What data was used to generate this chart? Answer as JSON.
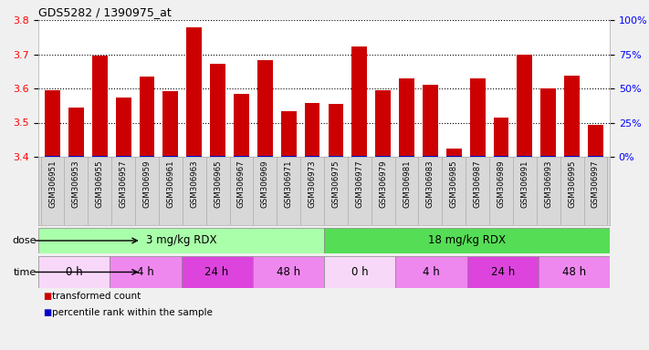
{
  "title": "GDS5282 / 1390975_at",
  "samples": [
    "GSM306951",
    "GSM306953",
    "GSM306955",
    "GSM306957",
    "GSM306959",
    "GSM306961",
    "GSM306963",
    "GSM306965",
    "GSM306967",
    "GSM306969",
    "GSM306971",
    "GSM306973",
    "GSM306975",
    "GSM306977",
    "GSM306979",
    "GSM306981",
    "GSM306983",
    "GSM306985",
    "GSM306987",
    "GSM306989",
    "GSM306991",
    "GSM306993",
    "GSM306995",
    "GSM306997"
  ],
  "values": [
    3.594,
    3.543,
    3.697,
    3.573,
    3.634,
    3.592,
    3.779,
    3.671,
    3.583,
    3.683,
    3.533,
    3.557,
    3.554,
    3.722,
    3.594,
    3.63,
    3.61,
    3.424,
    3.63,
    3.514,
    3.699,
    3.6,
    3.637,
    3.492
  ],
  "bar_color": "#cc0000",
  "blue_color": "#0000cc",
  "ylim": [
    3.4,
    3.8
  ],
  "yticks": [
    3.4,
    3.5,
    3.6,
    3.7,
    3.8
  ],
  "right_yticks": [
    0,
    25,
    50,
    75,
    100
  ],
  "right_ylabels": [
    "0%",
    "25%",
    "50%",
    "75%",
    "100%"
  ],
  "dose_groups": [
    {
      "label": "3 mg/kg RDX",
      "start": 0,
      "end": 12,
      "color": "#aaffaa"
    },
    {
      "label": "18 mg/kg RDX",
      "start": 12,
      "end": 24,
      "color": "#55dd55"
    }
  ],
  "time_groups": [
    {
      "label": "0 h",
      "start": 0,
      "end": 3,
      "color": "#f8d8f8"
    },
    {
      "label": "4 h",
      "start": 3,
      "end": 6,
      "color": "#ee88ee"
    },
    {
      "label": "24 h",
      "start": 6,
      "end": 9,
      "color": "#dd44dd"
    },
    {
      "label": "48 h",
      "start": 9,
      "end": 12,
      "color": "#ee88ee"
    },
    {
      "label": "0 h",
      "start": 12,
      "end": 15,
      "color": "#f8d8f8"
    },
    {
      "label": "4 h",
      "start": 15,
      "end": 18,
      "color": "#ee88ee"
    },
    {
      "label": "24 h",
      "start": 18,
      "end": 21,
      "color": "#dd44dd"
    },
    {
      "label": "48 h",
      "start": 21,
      "end": 24,
      "color": "#ee88ee"
    }
  ],
  "dose_label": "dose",
  "time_label": "time",
  "legend_items": [
    {
      "label": "transformed count",
      "color": "#cc0000"
    },
    {
      "label": "percentile rank within the sample",
      "color": "#0000cc"
    }
  ],
  "fig_bg": "#f0f0f0",
  "plot_bg": "#ffffff",
  "tick_area_bg": "#d8d8d8"
}
